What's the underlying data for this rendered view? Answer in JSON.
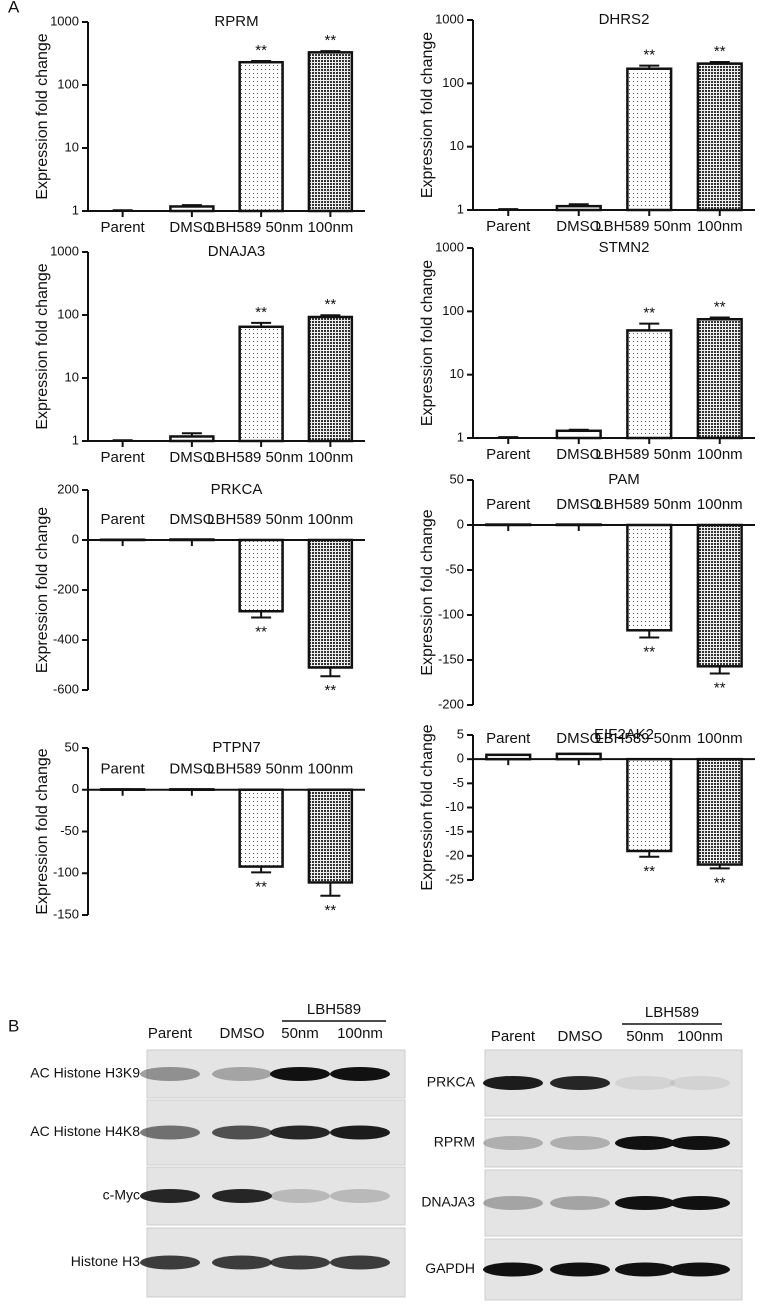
{
  "panel_labels": [
    "A",
    "B"
  ],
  "chart_data": [
    {
      "type": "bar",
      "title": "RPRM",
      "y_label": "Expression fold change",
      "log_scale": true,
      "categories": [
        "Parent",
        "DMSO",
        "LBH589 50nm",
        "100nm"
      ],
      "values": [
        1.0,
        1.18,
        230,
        330
      ],
      "errors": [
        0.03,
        0.06,
        10,
        15
      ],
      "annotations": [
        null,
        null,
        "**",
        "**"
      ],
      "ylim": [
        1,
        1000
      ],
      "yticks": [
        1,
        10,
        100,
        1000
      ]
    },
    {
      "type": "bar",
      "title": "DHRS2",
      "y_label": "Expression fold change",
      "log_scale": true,
      "categories": [
        "Parent",
        "DMSO",
        "LBH589 50nm",
        "100nm"
      ],
      "values": [
        1.0,
        1.15,
        170,
        205
      ],
      "errors": [
        0.03,
        0.08,
        20,
        12
      ],
      "annotations": [
        null,
        null,
        "**",
        "**"
      ],
      "ylim": [
        1,
        1000
      ],
      "yticks": [
        1,
        10,
        100,
        1000
      ]
    },
    {
      "type": "bar",
      "title": "DNAJA3",
      "y_label": "Expression fold change",
      "log_scale": true,
      "categories": [
        "Parent",
        "DMSO",
        "LBH589 50nm",
        "100nm"
      ],
      "values": [
        1.0,
        1.18,
        65,
        93
      ],
      "errors": [
        0.03,
        0.15,
        10,
        6
      ],
      "annotations": [
        null,
        null,
        "**",
        "**"
      ],
      "ylim": [
        1,
        1000
      ],
      "yticks": [
        1,
        10,
        100,
        1000
      ]
    },
    {
      "type": "bar",
      "title": "STMN2",
      "y_label": "Expression fold change",
      "log_scale": true,
      "categories": [
        "Parent",
        "DMSO",
        "LBH589 50nm",
        "100nm"
      ],
      "values": [
        1.0,
        1.3,
        50,
        75
      ],
      "errors": [
        0.03,
        0.05,
        14,
        5
      ],
      "annotations": [
        null,
        null,
        "**",
        "**"
      ],
      "ylim": [
        1,
        1000
      ],
      "yticks": [
        1,
        10,
        100,
        1000
      ]
    },
    {
      "type": "bar",
      "title": "PRKCA",
      "y_label": "Expression fold change",
      "log_scale": false,
      "categories": [
        "Parent",
        "DMSO",
        "LBH589 50nm",
        "100nm"
      ],
      "values": [
        1,
        2,
        -285,
        -510
      ],
      "errors": [
        0,
        0,
        25,
        35
      ],
      "annotations": [
        null,
        null,
        "**",
        "**"
      ],
      "ylim": [
        -600,
        200
      ],
      "yticks": [
        -600,
        -400,
        -200,
        0,
        200
      ]
    },
    {
      "type": "bar",
      "title": "PAM",
      "y_label": "Expression fold change",
      "log_scale": false,
      "categories": [
        "Parent",
        "DMSO",
        "LBH589 50nm",
        "100nm"
      ],
      "values": [
        0.5,
        0.5,
        -117,
        -157
      ],
      "errors": [
        0,
        0,
        8,
        8
      ],
      "annotations": [
        null,
        null,
        "**",
        "**"
      ],
      "ylim": [
        -200,
        50
      ],
      "yticks": [
        -200,
        -150,
        -100,
        -50,
        0,
        50
      ]
    },
    {
      "type": "bar",
      "title": "PTPN7",
      "y_label": "Expression fold change",
      "log_scale": false,
      "categories": [
        "Parent",
        "DMSO",
        "LBH589 50nm",
        "100nm"
      ],
      "values": [
        0.5,
        0.5,
        -92,
        -111
      ],
      "errors": [
        0,
        0,
        7,
        16
      ],
      "annotations": [
        null,
        null,
        "**",
        "**"
      ],
      "ylim": [
        -150,
        50
      ],
      "yticks": [
        -150,
        -100,
        -50,
        0,
        50
      ]
    },
    {
      "type": "bar",
      "title": "EIF2AK2",
      "y_label": "Expression fold change",
      "log_scale": false,
      "categories": [
        "Parent",
        "DMSO",
        "LBH589 50nm",
        "100nm"
      ],
      "values": [
        0.9,
        1.1,
        -19,
        -21.8
      ],
      "errors": [
        0,
        0,
        1.2,
        0.8
      ],
      "annotations": [
        null,
        null,
        "**",
        "**"
      ],
      "ylim": [
        -25,
        5
      ],
      "yticks": [
        -25,
        -20,
        -15,
        -10,
        -5,
        0,
        5
      ]
    }
  ],
  "blots": [
    {
      "group_label": "LBH589",
      "lanes": [
        "Parent",
        "DMSO",
        "50nm",
        "100nm"
      ],
      "rows": [
        "AC  Histone H3K9",
        "AC  Histone H4K8",
        "c-Myc",
        "Histone H3"
      ]
    },
    {
      "group_label": "LBH589",
      "lanes": [
        "Parent",
        "DMSO",
        "50nm",
        "100nm"
      ],
      "rows": [
        "PRKCA",
        "RPRM",
        "DNAJA3",
        "GAPDH"
      ]
    }
  ]
}
